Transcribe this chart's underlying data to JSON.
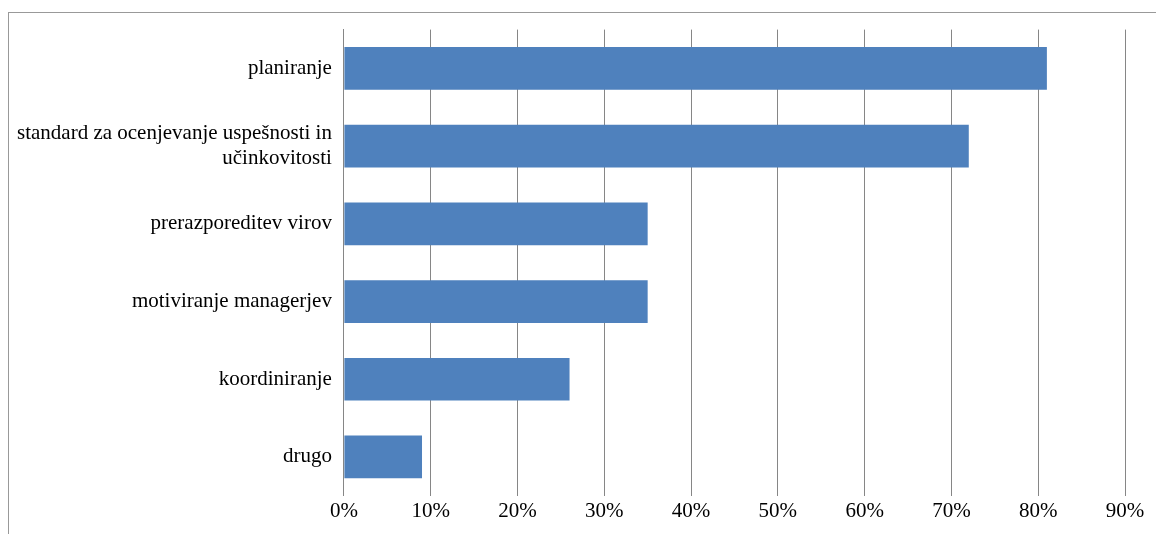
{
  "chart_data": {
    "type": "bar",
    "orientation": "horizontal",
    "categories": [
      "planiranje",
      "standard za ocenjevanje uspešnosti in učinkovitosti",
      "prerazporeditev virov",
      "motiviranje managerjev",
      "koordiniranje",
      "drugo"
    ],
    "values": [
      81,
      72,
      35,
      35,
      26,
      9
    ],
    "color": "#4f81bd",
    "xlim": [
      0,
      90
    ],
    "xticks": [
      {
        "value": 0,
        "label": "0%"
      },
      {
        "value": 10,
        "label": "10%"
      },
      {
        "value": 20,
        "label": "20%"
      },
      {
        "value": 30,
        "label": "30%"
      },
      {
        "value": 40,
        "label": "40%"
      },
      {
        "value": 50,
        "label": "50%"
      },
      {
        "value": 60,
        "label": "60%"
      },
      {
        "value": 70,
        "label": "70%"
      },
      {
        "value": 80,
        "label": "80%"
      },
      {
        "value": 90,
        "label": "90%"
      }
    ],
    "grid": "x",
    "legend": false
  }
}
